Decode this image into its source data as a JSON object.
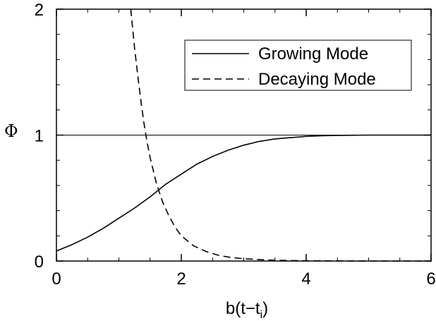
{
  "chart_data": {
    "type": "line",
    "xlabel": {
      "base": "b(t−t",
      "sub": "i",
      "close": ")"
    },
    "ylabel": "Φ",
    "xlim": [
      0,
      6
    ],
    "ylim": [
      0,
      2
    ],
    "xticks": [
      "0",
      "2",
      "4",
      "6"
    ],
    "yticks": [
      "0",
      "1",
      "2"
    ],
    "reference_line": {
      "y": 1
    },
    "legend": {
      "position": "top-right"
    },
    "series": [
      {
        "name": "Growing Mode",
        "style": "solid",
        "color": "#000000",
        "x": [
          0,
          0.25,
          0.5,
          0.75,
          1.0,
          1.25,
          1.5,
          1.75,
          2.0,
          2.25,
          2.5,
          2.75,
          3.0,
          3.25,
          3.5,
          3.75,
          4.0,
          4.25,
          4.5,
          4.75,
          5.0,
          5.25,
          5.5,
          5.75,
          6.0
        ],
        "y": [
          0.08,
          0.13,
          0.19,
          0.26,
          0.34,
          0.42,
          0.51,
          0.61,
          0.69,
          0.77,
          0.83,
          0.88,
          0.92,
          0.95,
          0.97,
          0.98,
          0.99,
          0.995,
          0.998,
          0.999,
          1.0,
          1.0,
          1.0,
          1.0,
          1.0
        ]
      },
      {
        "name": "Decaying Mode",
        "style": "dashed",
        "color": "#000000",
        "x": [
          1.19,
          1.25,
          1.3,
          1.35,
          1.4,
          1.45,
          1.5,
          1.6,
          1.7,
          1.8,
          1.9,
          2.0,
          2.2,
          2.4,
          2.6,
          2.8,
          3.0,
          3.3,
          3.6,
          4.0,
          4.5,
          5.0,
          5.5,
          6.0
        ],
        "y": [
          2.0,
          1.7,
          1.48,
          1.28,
          1.1,
          0.95,
          0.82,
          0.62,
          0.47,
          0.36,
          0.27,
          0.2,
          0.12,
          0.075,
          0.045,
          0.028,
          0.018,
          0.01,
          0.005,
          0.002,
          0.001,
          0.0,
          0.0,
          0.0
        ]
      }
    ]
  }
}
